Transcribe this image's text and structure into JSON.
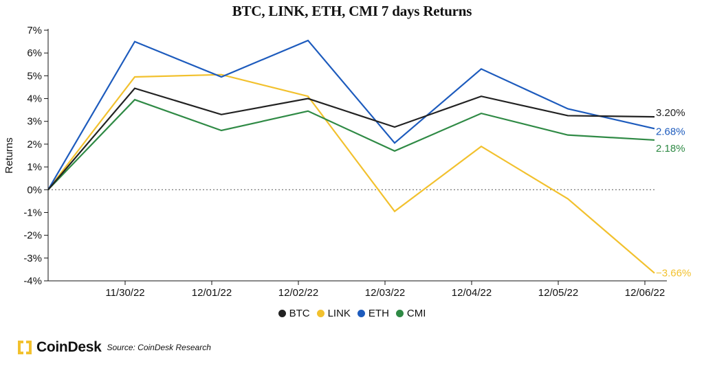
{
  "chart_data": {
    "type": "line",
    "title": "BTC, LINK, ETH, CMI 7 days Returns",
    "ylabel": "Returns",
    "xlabel": "",
    "ylim": [
      -4,
      7
    ],
    "yticks": [
      "7%",
      "6%",
      "5%",
      "4%",
      "3%",
      "2%",
      "1%",
      "0%",
      "-1%",
      "-2%",
      "-3%",
      "-4%"
    ],
    "x_tick_labels": [
      "11/30/22",
      "12/01/22",
      "12/02/22",
      "12/03/22",
      "12/04/22",
      "12/05/22",
      "12/06/22"
    ],
    "zero_line": "dotted",
    "legend_position": "bottom",
    "series": [
      {
        "name": "BTC",
        "color": "#222222",
        "values": [
          0,
          4.45,
          3.3,
          4.0,
          2.75,
          4.1,
          3.25,
          3.2
        ],
        "end_label": "3.20%"
      },
      {
        "name": "LINK",
        "color": "#f2c12e",
        "values": [
          0,
          4.95,
          5.05,
          4.1,
          -0.95,
          1.9,
          -0.4,
          -3.66
        ],
        "end_label": "−3.66%"
      },
      {
        "name": "ETH",
        "color": "#1d5bbd",
        "values": [
          0,
          6.5,
          4.95,
          6.55,
          2.05,
          5.3,
          3.55,
          2.68
        ],
        "end_label": "2.68%"
      },
      {
        "name": "CMI",
        "color": "#2f8a45",
        "values": [
          0,
          3.95,
          2.6,
          3.45,
          1.7,
          3.35,
          2.4,
          2.18
        ],
        "end_label": "2.18%"
      }
    ]
  },
  "legend": {
    "items": [
      {
        "label": "BTC",
        "color": "#222222"
      },
      {
        "label": "LINK",
        "color": "#f2c12e"
      },
      {
        "label": "ETH",
        "color": "#1d5bbd"
      },
      {
        "label": "CMI",
        "color": "#2f8a45"
      }
    ]
  },
  "footer": {
    "brand": "CoinDesk",
    "source": "Source: CoinDesk Research",
    "logo_color": "#f2c12e"
  }
}
